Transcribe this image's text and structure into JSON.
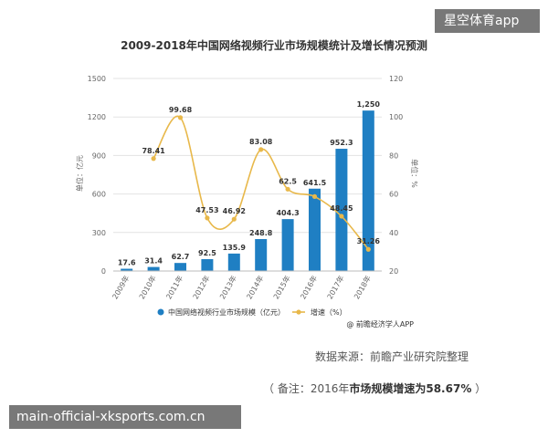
{
  "overlays": {
    "top_right": "星空体育app",
    "bottom_left": "main-official-xksports.com.cn"
  },
  "notes": {
    "source": "数据来源：前瞻产业研究院整理",
    "remark_prefix": "（ 备注：2016年",
    "remark_bold": "市场规模增速为58.67%",
    "remark_suffix": " ）"
  },
  "colors": {
    "bar": "#1f7fc3",
    "line": "#e8b84a",
    "grid": "#e3e3e3",
    "axis_text": "#666666"
  },
  "chart_data": {
    "type": "bar",
    "title": "2009-2018年中国网络视频行业市场规模统计及增长情况预测",
    "categories": [
      "2009年",
      "2010年",
      "2011年",
      "2012年",
      "2013年",
      "2014年",
      "2015年",
      "2016年",
      "2017年",
      "2018年"
    ],
    "series": [
      {
        "name": "中国网络视频行业市场规模（亿元）",
        "type": "bar",
        "axis": "left",
        "values": [
          17.6,
          31.4,
          62.7,
          92.5,
          135.9,
          248.8,
          404.3,
          641.5,
          952.3,
          1250
        ],
        "labels": [
          "17.6",
          "31.4",
          "62.7",
          "92.5",
          "135.9",
          "248.8",
          "404.3",
          "641.5",
          "952.3",
          "1,250"
        ]
      },
      {
        "name": "增速（%）",
        "type": "line",
        "axis": "right",
        "values": [
          null,
          78.41,
          99.68,
          47.53,
          46.92,
          83.08,
          62.5,
          58.67,
          48.45,
          31.26
        ],
        "labels": [
          "",
          "78.41",
          "99.68",
          "47.53",
          "46.92",
          "83.08",
          "62.5",
          "",
          "48.45",
          "31.26"
        ]
      }
    ],
    "ylabel": "单位：亿元",
    "y2label": "单位：%",
    "ylim": [
      0,
      1500
    ],
    "yticks": [
      "0",
      "300",
      "600",
      "900",
      "1200",
      "1500"
    ],
    "y2lim": [
      20,
      120
    ],
    "y2ticks": [
      "20",
      "40",
      "60",
      "80",
      "100",
      "120"
    ],
    "legend": "bottom",
    "source_label": "@ 前瞻经济学人APP",
    "grid": true
  }
}
